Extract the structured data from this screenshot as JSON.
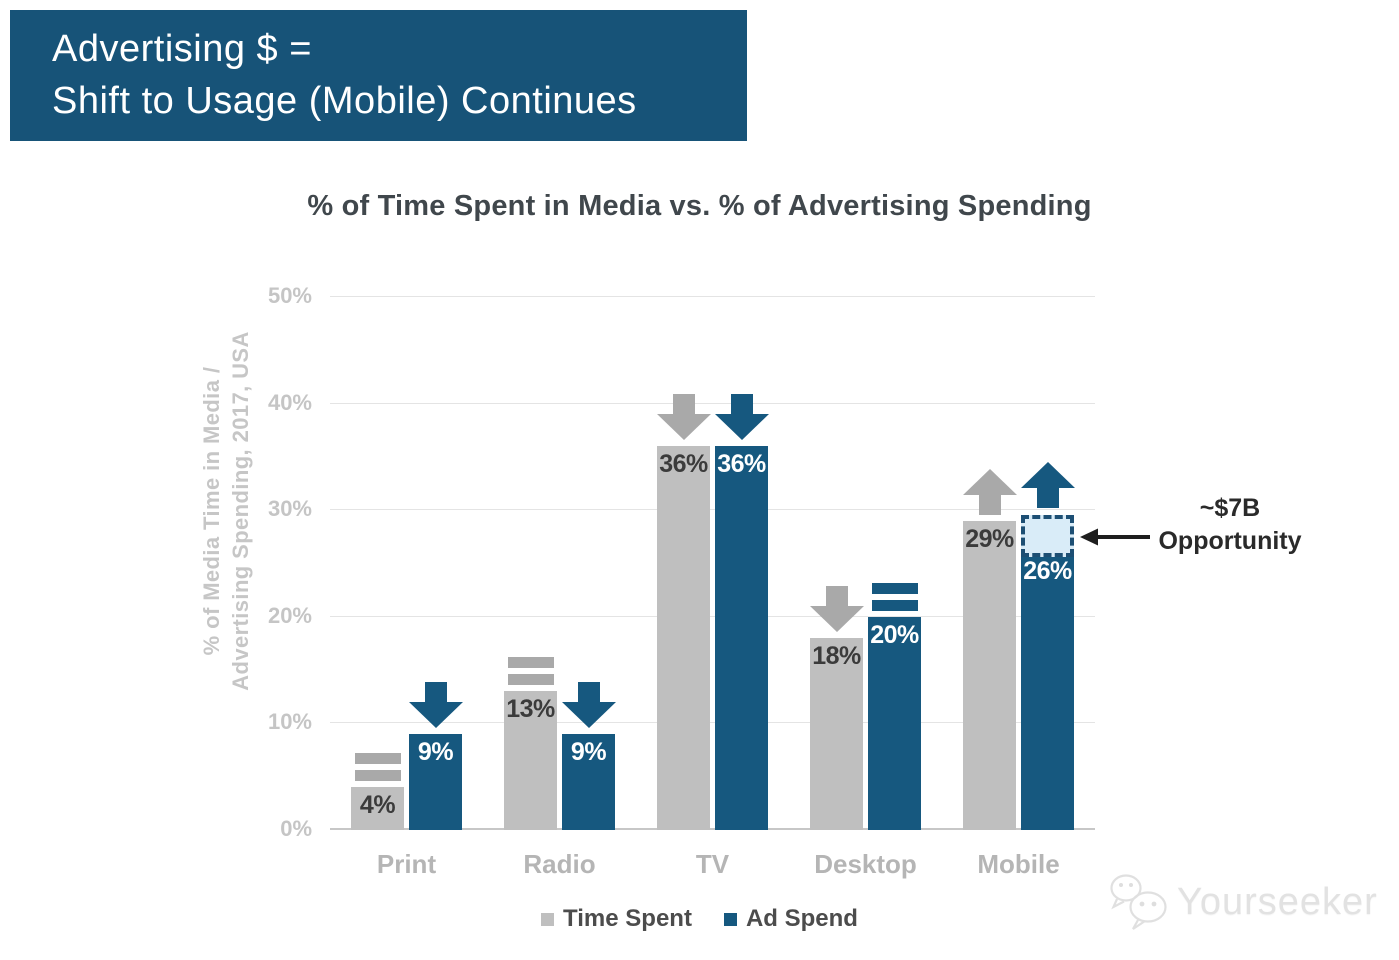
{
  "header": {
    "line1": "Advertising $ =",
    "line2": "Shift to Usage (Mobile) Continues"
  },
  "chart_data": {
    "type": "bar",
    "title": "% of Time Spent in Media vs. % of Advertising Spending",
    "ylabel": "% of Media Time in Media / Advertising Spending, 2017, USA",
    "ylabel_line1": "% of Media Time in Media /",
    "ylabel_line2": "Advertising Spending, 2017, USA",
    "categories": [
      "Print",
      "Radio",
      "TV",
      "Desktop",
      "Mobile"
    ],
    "series": [
      {
        "name": "Time Spent",
        "color": "#bfbfbf",
        "marker_color": "#a9a9a9",
        "label_color": "#3b3b3b",
        "values": [
          4,
          13,
          36,
          18,
          29
        ],
        "trends": [
          "equal",
          "equal",
          "down",
          "down",
          "up"
        ]
      },
      {
        "name": "Ad Spend",
        "color": "#16587f",
        "marker_color": "#16587f",
        "label_color": "#ffffff",
        "values": [
          9,
          9,
          36,
          20,
          26
        ],
        "trends": [
          "down",
          "down",
          "down",
          "equal",
          "up"
        ]
      }
    ],
    "value_suffix": "%",
    "ylim": [
      0,
      50
    ],
    "yticks": [
      "0%",
      "10%",
      "20%",
      "30%",
      "40%",
      "50%"
    ],
    "grid": true,
    "legend_position": "bottom",
    "opportunity_box": {
      "category": "Mobile",
      "series": "Ad Spend",
      "from": 26,
      "to": 29,
      "fill": "#d9ecf8",
      "border": "#1d4f74"
    }
  },
  "annotation": {
    "line1": "~$7B",
    "line2": "Opportunity"
  },
  "legend": {
    "items": [
      {
        "label": "Time Spent",
        "color": "#bfbfbf"
      },
      {
        "label": "Ad Spend",
        "color": "#16587f"
      }
    ]
  },
  "watermark": {
    "text": "Yourseeker"
  }
}
